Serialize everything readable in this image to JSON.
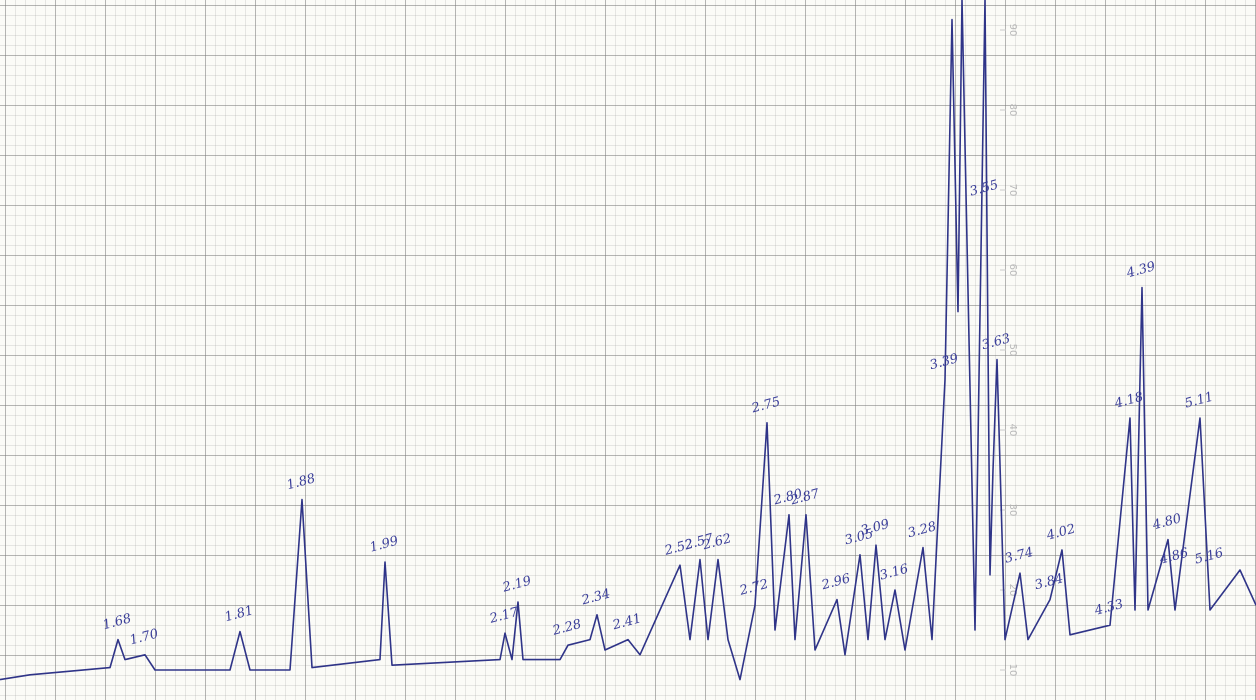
{
  "chart_data": {
    "type": "line",
    "xlim": [
      0,
      125.6
    ],
    "ylim": [
      6.25,
      93.75
    ],
    "yticks": [
      10,
      20,
      30,
      40,
      50,
      60,
      70,
      80,
      90
    ],
    "series": [
      {
        "color": "#2f3488",
        "x": [
          0,
          3,
          11,
          11.8,
          12.5,
          14.5,
          15.5,
          23,
          24,
          25,
          29,
          30.2,
          31.2,
          38,
          38.5,
          39.2,
          50,
          50.5,
          51.2,
          51.8,
          52.3,
          56,
          56.8,
          59,
          59.7,
          60.5,
          62.8,
          64,
          68,
          69,
          70,
          70.8,
          71.8,
          72.8,
          74,
          75.5,
          76.7,
          77.5,
          78.9,
          79.5,
          80.6,
          81.5,
          83.7,
          84.5,
          86,
          86.8,
          87.6,
          88.5,
          89.5,
          90.5,
          92.3,
          93.2,
          94.5,
          95.2,
          95.8,
          96.2,
          97.5,
          98.5,
          99,
          99.3,
          99.7,
          100.5,
          102,
          102.8,
          105,
          106.2,
          107,
          111,
          113,
          113.5,
          114.2,
          114.8,
          116.8,
          117.5,
          120,
          121,
          124,
          125.6
        ],
        "values": [
          8.8,
          9.4,
          10.3,
          13.8,
          11.3,
          11.9,
          10,
          10,
          14.8,
          10,
          10,
          31.3,
          10.3,
          11.3,
          23.5,
          10.6,
          11.3,
          14.6,
          11.3,
          18.5,
          11.3,
          11.3,
          13.1,
          13.8,
          16.9,
          12.5,
          13.8,
          11.9,
          23.1,
          13.8,
          23.8,
          13.8,
          23.8,
          13.8,
          8.8,
          18.1,
          40.9,
          15,
          29.4,
          13.8,
          29.4,
          12.5,
          18.8,
          11.9,
          24.4,
          13.8,
          25.6,
          13.8,
          20,
          12.5,
          25.3,
          13.8,
          46.3,
          91.3,
          54.8,
          93.8,
          15,
          93.8,
          21.9,
          35,
          48.8,
          13.8,
          22.1,
          13.8,
          18.8,
          25,
          14.4,
          15.6,
          41.5,
          17.5,
          57.8,
          17.5,
          26.3,
          17.5,
          41.5,
          17.5,
          22.5,
          18.1
        ]
      }
    ],
    "annotations": [
      {
        "text": "1.68",
        "x": 11.8,
        "y": 13.8
      },
      {
        "text": "1.70",
        "x": 14.5,
        "y": 11.9
      },
      {
        "text": "1.81",
        "x": 24,
        "y": 14.8
      },
      {
        "text": "1.88",
        "x": 30.2,
        "y": 31.3
      },
      {
        "text": "1.99",
        "x": 38.5,
        "y": 23.5
      },
      {
        "text": "2.17",
        "x": 50.5,
        "y": 14.6
      },
      {
        "text": "2.19",
        "x": 51.8,
        "y": 18.5
      },
      {
        "text": "2.28",
        "x": 56.8,
        "y": 13.1
      },
      {
        "text": "2.34",
        "x": 59.7,
        "y": 16.9
      },
      {
        "text": "2.41",
        "x": 62.8,
        "y": 13.8
      },
      {
        "text": "2.52",
        "x": 68,
        "y": 23.1
      },
      {
        "text": "2.57",
        "x": 70,
        "y": 23.8
      },
      {
        "text": "2.62",
        "x": 71.8,
        "y": 23.8
      },
      {
        "text": "2.72",
        "x": 75.5,
        "y": 18.1
      },
      {
        "text": "2.75",
        "x": 76.7,
        "y": 40.9
      },
      {
        "text": "2.80",
        "x": 78.9,
        "y": 29.4
      },
      {
        "text": "2.87",
        "x": 80.6,
        "y": 29.4
      },
      {
        "text": "2.96",
        "x": 83.7,
        "y": 18.8
      },
      {
        "text": "3.05",
        "x": 86,
        "y": 24.4
      },
      {
        "text": "3.09",
        "x": 87.6,
        "y": 25.6
      },
      {
        "text": "3.16",
        "x": 89.5,
        "y": 20
      },
      {
        "text": "3.28",
        "x": 92.3,
        "y": 25.3
      },
      {
        "text": "3.39",
        "x": 94.5,
        "y": 46.3
      },
      {
        "text": "3.55",
        "x": 98.5,
        "y": 68
      },
      {
        "text": "3.63",
        "x": 99.7,
        "y": 48.8
      },
      {
        "text": "3.74",
        "x": 102,
        "y": 22.1
      },
      {
        "text": "3.84",
        "x": 105,
        "y": 18.8
      },
      {
        "text": "4.02",
        "x": 106.2,
        "y": 25
      },
      {
        "text": "4.33",
        "x": 111,
        "y": 15.6
      },
      {
        "text": "4.18",
        "x": 113,
        "y": 41.5
      },
      {
        "text": "4.39",
        "x": 114.2,
        "y": 57.8
      },
      {
        "text": "4.80",
        "x": 116.8,
        "y": 26.3
      },
      {
        "text": "4.86",
        "x": 117.5,
        "y": 22
      },
      {
        "text": "5.11",
        "x": 120,
        "y": 41.5
      },
      {
        "text": "5.16",
        "x": 121,
        "y": 22
      }
    ]
  }
}
